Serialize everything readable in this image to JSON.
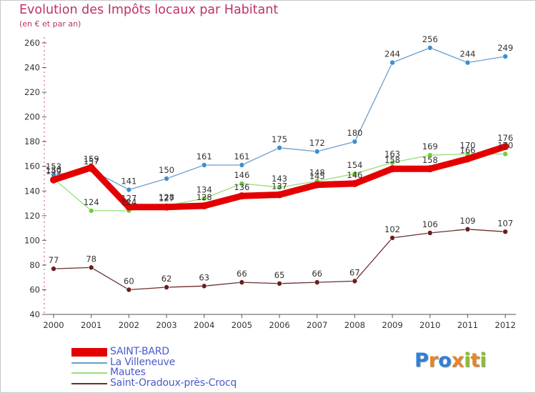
{
  "title": "Evolution des Impôts locaux par Habitant",
  "subtitle": "(en € et par an)",
  "logo": {
    "text": "Proxiti",
    "letters": [
      "P",
      "r",
      "o",
      "x",
      "i",
      "t",
      "i"
    ],
    "colors": [
      "#2f7fd6",
      "#e8862a",
      "#2f7fd6",
      "#e8862a",
      "#8dbf2e",
      "#e8862a",
      "#8dbf2e"
    ]
  },
  "chart_data": {
    "type": "line",
    "title": "Evolution des Impôts locaux par Habitant",
    "subtitle": "(en € et par an)",
    "xlabel": "",
    "ylabel": "",
    "ylim": [
      40,
      260
    ],
    "yticks": [
      40,
      60,
      80,
      100,
      120,
      140,
      160,
      180,
      200,
      220,
      240,
      260
    ],
    "x": [
      "2000",
      "2001",
      "2002",
      "2003",
      "2004",
      "2005",
      "2006",
      "2007",
      "2008",
      "2009",
      "2010",
      "2011",
      "2012"
    ],
    "legend_position": "bottom-left",
    "grid": false,
    "series": [
      {
        "name": "SAINT-BARD",
        "color": "#e40000",
        "marker": "#e40000",
        "values": [
          149,
          159,
          127,
          127,
          128,
          136,
          137,
          145,
          146,
          158,
          158,
          166,
          176
        ],
        "labels": [
          "149",
          "159",
          "127",
          "127",
          "128",
          "136",
          "137",
          "145",
          "146",
          "158",
          "158",
          "166",
          "176"
        ]
      },
      {
        "name": "La Villeneuve",
        "color": "#6a9fcf",
        "marker": "#3d8fd0",
        "values": [
          153,
          157,
          141,
          150,
          161,
          161,
          175,
          172,
          180,
          244,
          256,
          244,
          249
        ],
        "labels": [
          "153",
          "157",
          "141",
          "150",
          "161",
          "161",
          "175",
          "172",
          "180",
          "244",
          "256",
          "244",
          "249"
        ]
      },
      {
        "name": "Mautes",
        "color": "#99dd77",
        "marker": "#6fcf3a",
        "values": [
          150,
          124,
          124,
          128,
          134,
          146,
          143,
          148,
          154,
          163,
          169,
          170,
          170
        ],
        "labels": [
          "150",
          "124",
          "124",
          "128",
          "134",
          "146",
          "143",
          "148",
          "154",
          "163",
          "169",
          "170",
          "170"
        ]
      },
      {
        "name": "Saint-Oradoux-près-Crocq",
        "color": "#6b2e2e",
        "marker": "#6b1e1e",
        "values": [
          77,
          78,
          60,
          62,
          63,
          66,
          65,
          66,
          67,
          102,
          106,
          109,
          107
        ],
        "labels": [
          "77",
          "78",
          "60",
          "62",
          "63",
          "66",
          "65",
          "66",
          "67",
          "102",
          "106",
          "109",
          "107"
        ]
      }
    ]
  }
}
